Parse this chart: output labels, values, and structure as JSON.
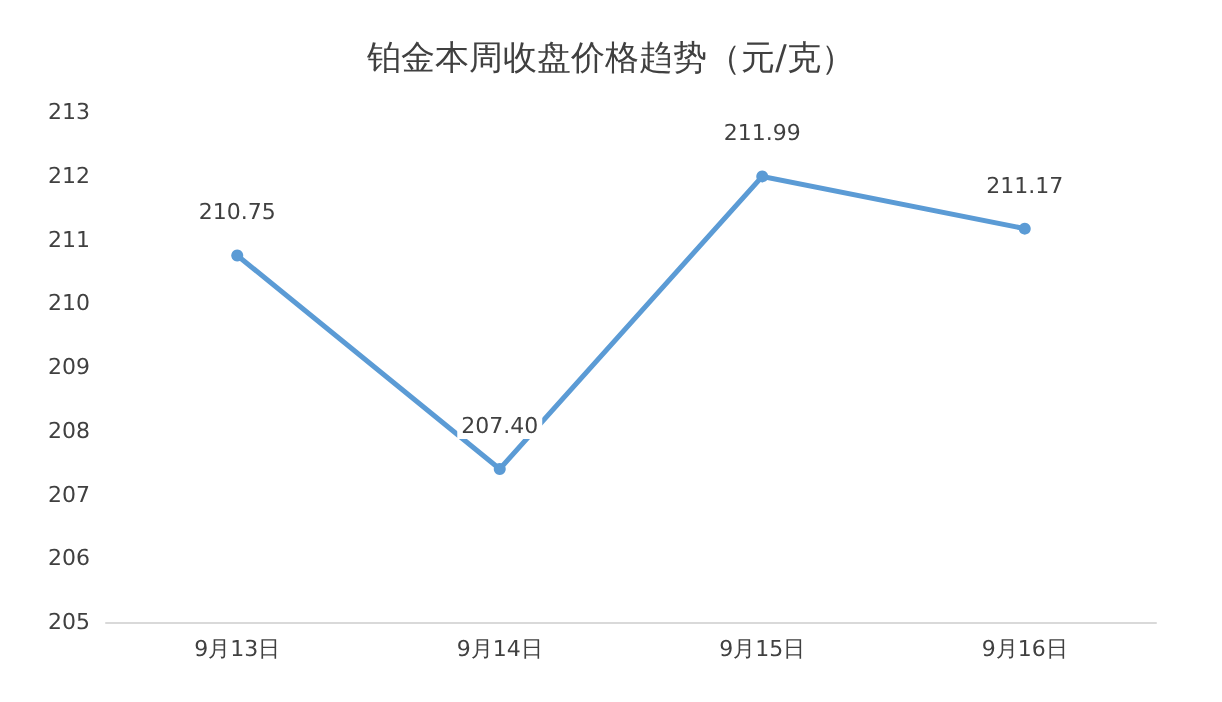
{
  "chart_data": {
    "type": "line",
    "title": "铂金本周收盘价格趋势（元/克）",
    "categories": [
      "9月13日",
      "9月14日",
      "9月15日",
      "9月16日"
    ],
    "series": [
      {
        "color": "#5b9bd5",
        "values": [
          210.75,
          207.4,
          211.99,
          211.17
        ],
        "value_labels": [
          "210.75",
          "207.40",
          "211.99",
          "211.17"
        ]
      }
    ],
    "ylim": [
      205,
      213
    ],
    "yticks": [
      205,
      206,
      207,
      208,
      209,
      210,
      211,
      212,
      213
    ],
    "grid": false,
    "marker": "circle",
    "line_style": "solid"
  }
}
